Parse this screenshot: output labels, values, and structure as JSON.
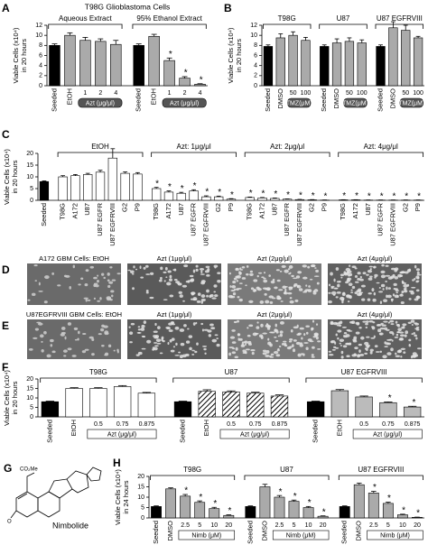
{
  "chart_data": [
    {
      "type": "bar",
      "panel": "A",
      "title": "T98G Glioblastoma Cells",
      "ylabel": [
        "Viable Cells (x10⁴)",
        "in 20 hours"
      ],
      "ylim": [
        0,
        12
      ],
      "yticks": [
        0,
        2,
        4,
        6,
        8,
        10,
        12
      ],
      "sublabel_fill": "#555555",
      "groups": [
        {
          "name": "Aqueous Extract",
          "sublabel": "Azt (μg/μl)",
          "categories": [
            "Seeded",
            "EtOH",
            "1",
            "2",
            "4"
          ],
          "values": [
            8,
            10,
            9,
            8.8,
            8.2
          ],
          "errors": [
            0.3,
            0.5,
            0.6,
            0.5,
            0.8
          ],
          "colors": [
            "#000000",
            "#aaaaaa",
            "#aaaaaa",
            "#aaaaaa",
            "#aaaaaa"
          ],
          "stars": [
            null,
            null,
            null,
            null,
            null
          ]
        },
        {
          "name": "95% Ethanol Extract",
          "sublabel": "Azt (μg/μl)",
          "categories": [
            "Seeded",
            "EtOH",
            "1",
            "2",
            "4"
          ],
          "values": [
            8,
            9.8,
            5,
            1.5,
            0.3
          ],
          "errors": [
            0.3,
            0.4,
            0.5,
            0.3,
            0.1
          ],
          "colors": [
            "#000000",
            "#aaaaaa",
            "#aaaaaa",
            "#aaaaaa",
            "#aaaaaa"
          ],
          "stars": [
            null,
            null,
            "*",
            "*",
            "*"
          ]
        }
      ]
    },
    {
      "type": "bar",
      "panel": "B",
      "ylabel": [
        "Viable Cells (x10⁴)",
        "in 20 hours"
      ],
      "ylim": [
        0,
        12
      ],
      "yticks": [
        0,
        2,
        4,
        6,
        8,
        10,
        12
      ],
      "sublabel_fill": "#555555",
      "groups": [
        {
          "name": "T98G",
          "sublabel": "TMZ(μM)",
          "categories": [
            "Seeded",
            "DMSO",
            "50",
            "100"
          ],
          "values": [
            7.8,
            9.5,
            10,
            9
          ],
          "errors": [
            0.3,
            0.8,
            0.7,
            0.6
          ],
          "colors": [
            "#000000",
            "#aaaaaa",
            "#aaaaaa",
            "#aaaaaa"
          ],
          "stars": [
            null,
            null,
            null,
            null
          ]
        },
        {
          "name": "U87",
          "sublabel": "TMZ(μM)",
          "categories": [
            "Seeded",
            "DMSO",
            "50",
            "100"
          ],
          "values": [
            7.8,
            8.5,
            8.8,
            8.5
          ],
          "errors": [
            0.3,
            0.8,
            0.7,
            0.6
          ],
          "colors": [
            "#000000",
            "#aaaaaa",
            "#aaaaaa",
            "#aaaaaa"
          ],
          "stars": [
            null,
            null,
            null,
            null
          ]
        },
        {
          "name": "U87 EGFRVIII",
          "sublabel": "TMZ(μM)",
          "categories": [
            "Seeded",
            "DMSO",
            "50",
            "100"
          ],
          "values": [
            7.8,
            11.5,
            11,
            9.5
          ],
          "errors": [
            0.3,
            1.2,
            1.0,
            0.3
          ],
          "colors": [
            "#000000",
            "#aaaaaa",
            "#aaaaaa",
            "#aaaaaa"
          ],
          "stars": [
            null,
            null,
            null,
            null
          ]
        }
      ]
    },
    {
      "type": "bar",
      "panel": "C",
      "ylabel": [
        "Viable Cells (x10⁴)",
        "in 20 hours"
      ],
      "ylim": [
        0,
        20
      ],
      "yticks": [
        0,
        5,
        10,
        15,
        20
      ],
      "groups": [
        {
          "categories": [
            "Seeded"
          ],
          "values": [
            8
          ],
          "errors": [
            0.3
          ],
          "colors": [
            "#000000"
          ],
          "stars": [
            null
          ]
        },
        {
          "name": "EtOH",
          "categories": [
            "T98G",
            "A172",
            "U87",
            "U87 EGFR",
            "U87 EGFRVIII",
            "G2",
            "P9"
          ],
          "values": [
            10,
            10.5,
            11,
            12,
            18,
            11.5,
            11.2
          ],
          "errors": [
            0.5,
            0.5,
            0.5,
            0.8,
            4,
            0.6,
            0.6
          ],
          "colors": [
            "#ffffff",
            "#ffffff",
            "#ffffff",
            "#ffffff",
            "#ffffff",
            "#ffffff",
            "#ffffff"
          ],
          "stars": [
            null,
            null,
            null,
            null,
            null,
            null,
            null
          ]
        },
        {
          "name": "Azt: 1μg/μl",
          "categories": [
            "T98G",
            "A172",
            "U87",
            "U87 EGFR",
            "U87 EGFRVIII",
            "G2",
            "P9"
          ],
          "values": [
            5,
            3.5,
            3,
            4,
            1.5,
            1.5,
            0.5
          ],
          "errors": [
            0.5,
            0.5,
            0.4,
            0.5,
            0.4,
            0.3,
            0.2
          ],
          "colors": [
            "#ffffff",
            "#ffffff",
            "#ffffff",
            "#ffffff",
            "#ffffff",
            "#ffffff",
            "#ffffff"
          ],
          "stars": [
            "*",
            "*",
            "*",
            "*",
            "*",
            "*",
            "*"
          ]
        },
        {
          "name": "Azt: 2μg/μl",
          "categories": [
            "T98G",
            "A172",
            "U87",
            "U87 EGFR",
            "U87 EGFRVIII",
            "G2",
            "P9"
          ],
          "values": [
            1.2,
            1,
            0.8,
            0.5,
            0.3,
            0.2,
            0.1
          ],
          "errors": [
            0.2,
            0.2,
            0.2,
            0.1,
            0.1,
            0.1,
            0.05
          ],
          "colors": [
            "#ffffff",
            "#ffffff",
            "#ffffff",
            "#ffffff",
            "#ffffff",
            "#ffffff",
            "#ffffff"
          ],
          "stars": [
            "*",
            "*",
            "*",
            "*",
            "*",
            "*",
            "*"
          ]
        },
        {
          "name": "Azt: 4μg/μl",
          "categories": [
            "T98G",
            "A172",
            "U87",
            "U87 EGFR",
            "U87 EGFRVIII",
            "G2",
            "P9"
          ],
          "values": [
            0.2,
            0.2,
            0.1,
            0.1,
            0.1,
            0.1,
            0.1
          ],
          "errors": [
            0.05,
            0.05,
            0.05,
            0.05,
            0.05,
            0.05,
            0.05
          ],
          "colors": [
            "#ffffff",
            "#ffffff",
            "#ffffff",
            "#ffffff",
            "#ffffff",
            "#ffffff",
            "#ffffff"
          ],
          "stars": [
            "*",
            "*",
            "*",
            "*",
            "*",
            "*",
            "*"
          ]
        }
      ]
    },
    {
      "type": "bar",
      "panel": "F",
      "ylabel": [
        "Viable Cells (x10⁴)",
        "in 20 hours"
      ],
      "ylim": [
        0,
        20
      ],
      "yticks": [
        0,
        5,
        10,
        15,
        20
      ],
      "sublabel_fill": "#ffffff",
      "groups": [
        {
          "name": "T98G",
          "sublabel": "Azt (μg/μl)",
          "categories": [
            "Seeded",
            "EtOH",
            "0.5",
            "0.75",
            "0.875"
          ],
          "values": [
            8,
            15,
            15,
            16,
            12.5
          ],
          "errors": [
            0.3,
            0.4,
            0.4,
            0.5,
            0.4
          ],
          "colors": [
            "#000000",
            "#ffffff",
            "#ffffff",
            "#ffffff",
            "#ffffff"
          ],
          "stars": [
            null,
            null,
            null,
            null,
            null
          ]
        },
        {
          "name": "U87",
          "sublabel": "Azt (μg/μl)",
          "categories": [
            "Seeded",
            "EtOH",
            "0.5",
            "0.75",
            "0.875"
          ],
          "values": [
            8,
            13.5,
            13.2,
            12.5,
            11
          ],
          "errors": [
            0.3,
            0.8,
            0.5,
            0.5,
            0.6
          ],
          "colors": [
            "#000000",
            "hatch",
            "hatch",
            "hatch",
            "hatch"
          ],
          "stars": [
            null,
            null,
            null,
            null,
            null
          ]
        },
        {
          "name": "U87 EGFRVIII",
          "sublabel": "Azt (μg/μl)",
          "categories": [
            "Seeded",
            "EtOH",
            "0.5",
            "0.75",
            "0.875"
          ],
          "values": [
            8,
            13.8,
            10.5,
            7.5,
            5.2
          ],
          "errors": [
            0.3,
            0.6,
            0.5,
            0.4,
            0.4
          ],
          "colors": [
            "#000000",
            "#bbbbbb",
            "#bbbbbb",
            "#bbbbbb",
            "#bbbbbb"
          ],
          "stars": [
            null,
            null,
            null,
            "*",
            "*"
          ]
        }
      ]
    },
    {
      "type": "bar",
      "panel": "H",
      "ylabel": [
        "Viable Cells (x10⁴)",
        "in 24 hours"
      ],
      "ylim": [
        0,
        20
      ],
      "yticks": [
        0,
        5,
        10,
        15,
        20
      ],
      "sublabel_fill": "#ffffff",
      "groups": [
        {
          "name": "T98G",
          "sublabel": "Nimb (μM)",
          "categories": [
            "Seeded",
            "DMSO",
            "2.5",
            "5",
            "10",
            "20"
          ],
          "values": [
            5.5,
            14,
            10.5,
            7.5,
            4.5,
            1.2
          ],
          "errors": [
            0.3,
            0.5,
            0.8,
            0.7,
            0.6,
            0.3
          ],
          "colors": [
            "#000000",
            "#aaaaaa",
            "#aaaaaa",
            "#aaaaaa",
            "#aaaaaa",
            "#aaaaaa"
          ],
          "stars": [
            null,
            null,
            "*",
            "*",
            "*",
            "*"
          ]
        },
        {
          "name": "U87",
          "sublabel": "Nimb (μM)",
          "categories": [
            "Seeded",
            "DMSO",
            "2.5",
            "5",
            "10",
            "20"
          ],
          "values": [
            5.5,
            15,
            10,
            8,
            5,
            0.8
          ],
          "errors": [
            0.3,
            1.2,
            0.8,
            0.6,
            0.5,
            0.2
          ],
          "colors": [
            "#000000",
            "#aaaaaa",
            "#aaaaaa",
            "#aaaaaa",
            "#aaaaaa",
            "#aaaaaa"
          ],
          "stars": [
            null,
            null,
            "*",
            "*",
            "*",
            "*"
          ]
        },
        {
          "name": "U87 EGFRVIII",
          "sublabel": "Nimb (μM)",
          "categories": [
            "Seeded",
            "DMSO",
            "2.5",
            "5",
            "10",
            "20"
          ],
          "values": [
            5.5,
            16,
            12,
            7,
            1.5,
            0.3
          ],
          "errors": [
            0.3,
            0.8,
            0.8,
            0.6,
            0.3,
            0.1
          ],
          "colors": [
            "#000000",
            "#aaaaaa",
            "#aaaaaa",
            "#aaaaaa",
            "#aaaaaa",
            "#aaaaaa"
          ],
          "stars": [
            null,
            null,
            "*",
            "*",
            "*",
            "*"
          ]
        }
      ]
    }
  ],
  "micrographs": [
    {
      "panel": "D",
      "labels": [
        "A172 GBM Cells: EtOH",
        "Azt (1μg/μl)",
        "Azt (2μg/μl)",
        "Azt (4μg/μl)"
      ]
    },
    {
      "panel": "E",
      "labels": [
        "U87EGFRVIII GBM Cells: EtOH",
        "Azt (1μg/μl)",
        "Azt (2μg/μl)",
        "Azt (4μg/μl)"
      ]
    }
  ],
  "structure": {
    "panel": "G",
    "name": "Nimbolide",
    "substituent": "CO₂Me"
  }
}
